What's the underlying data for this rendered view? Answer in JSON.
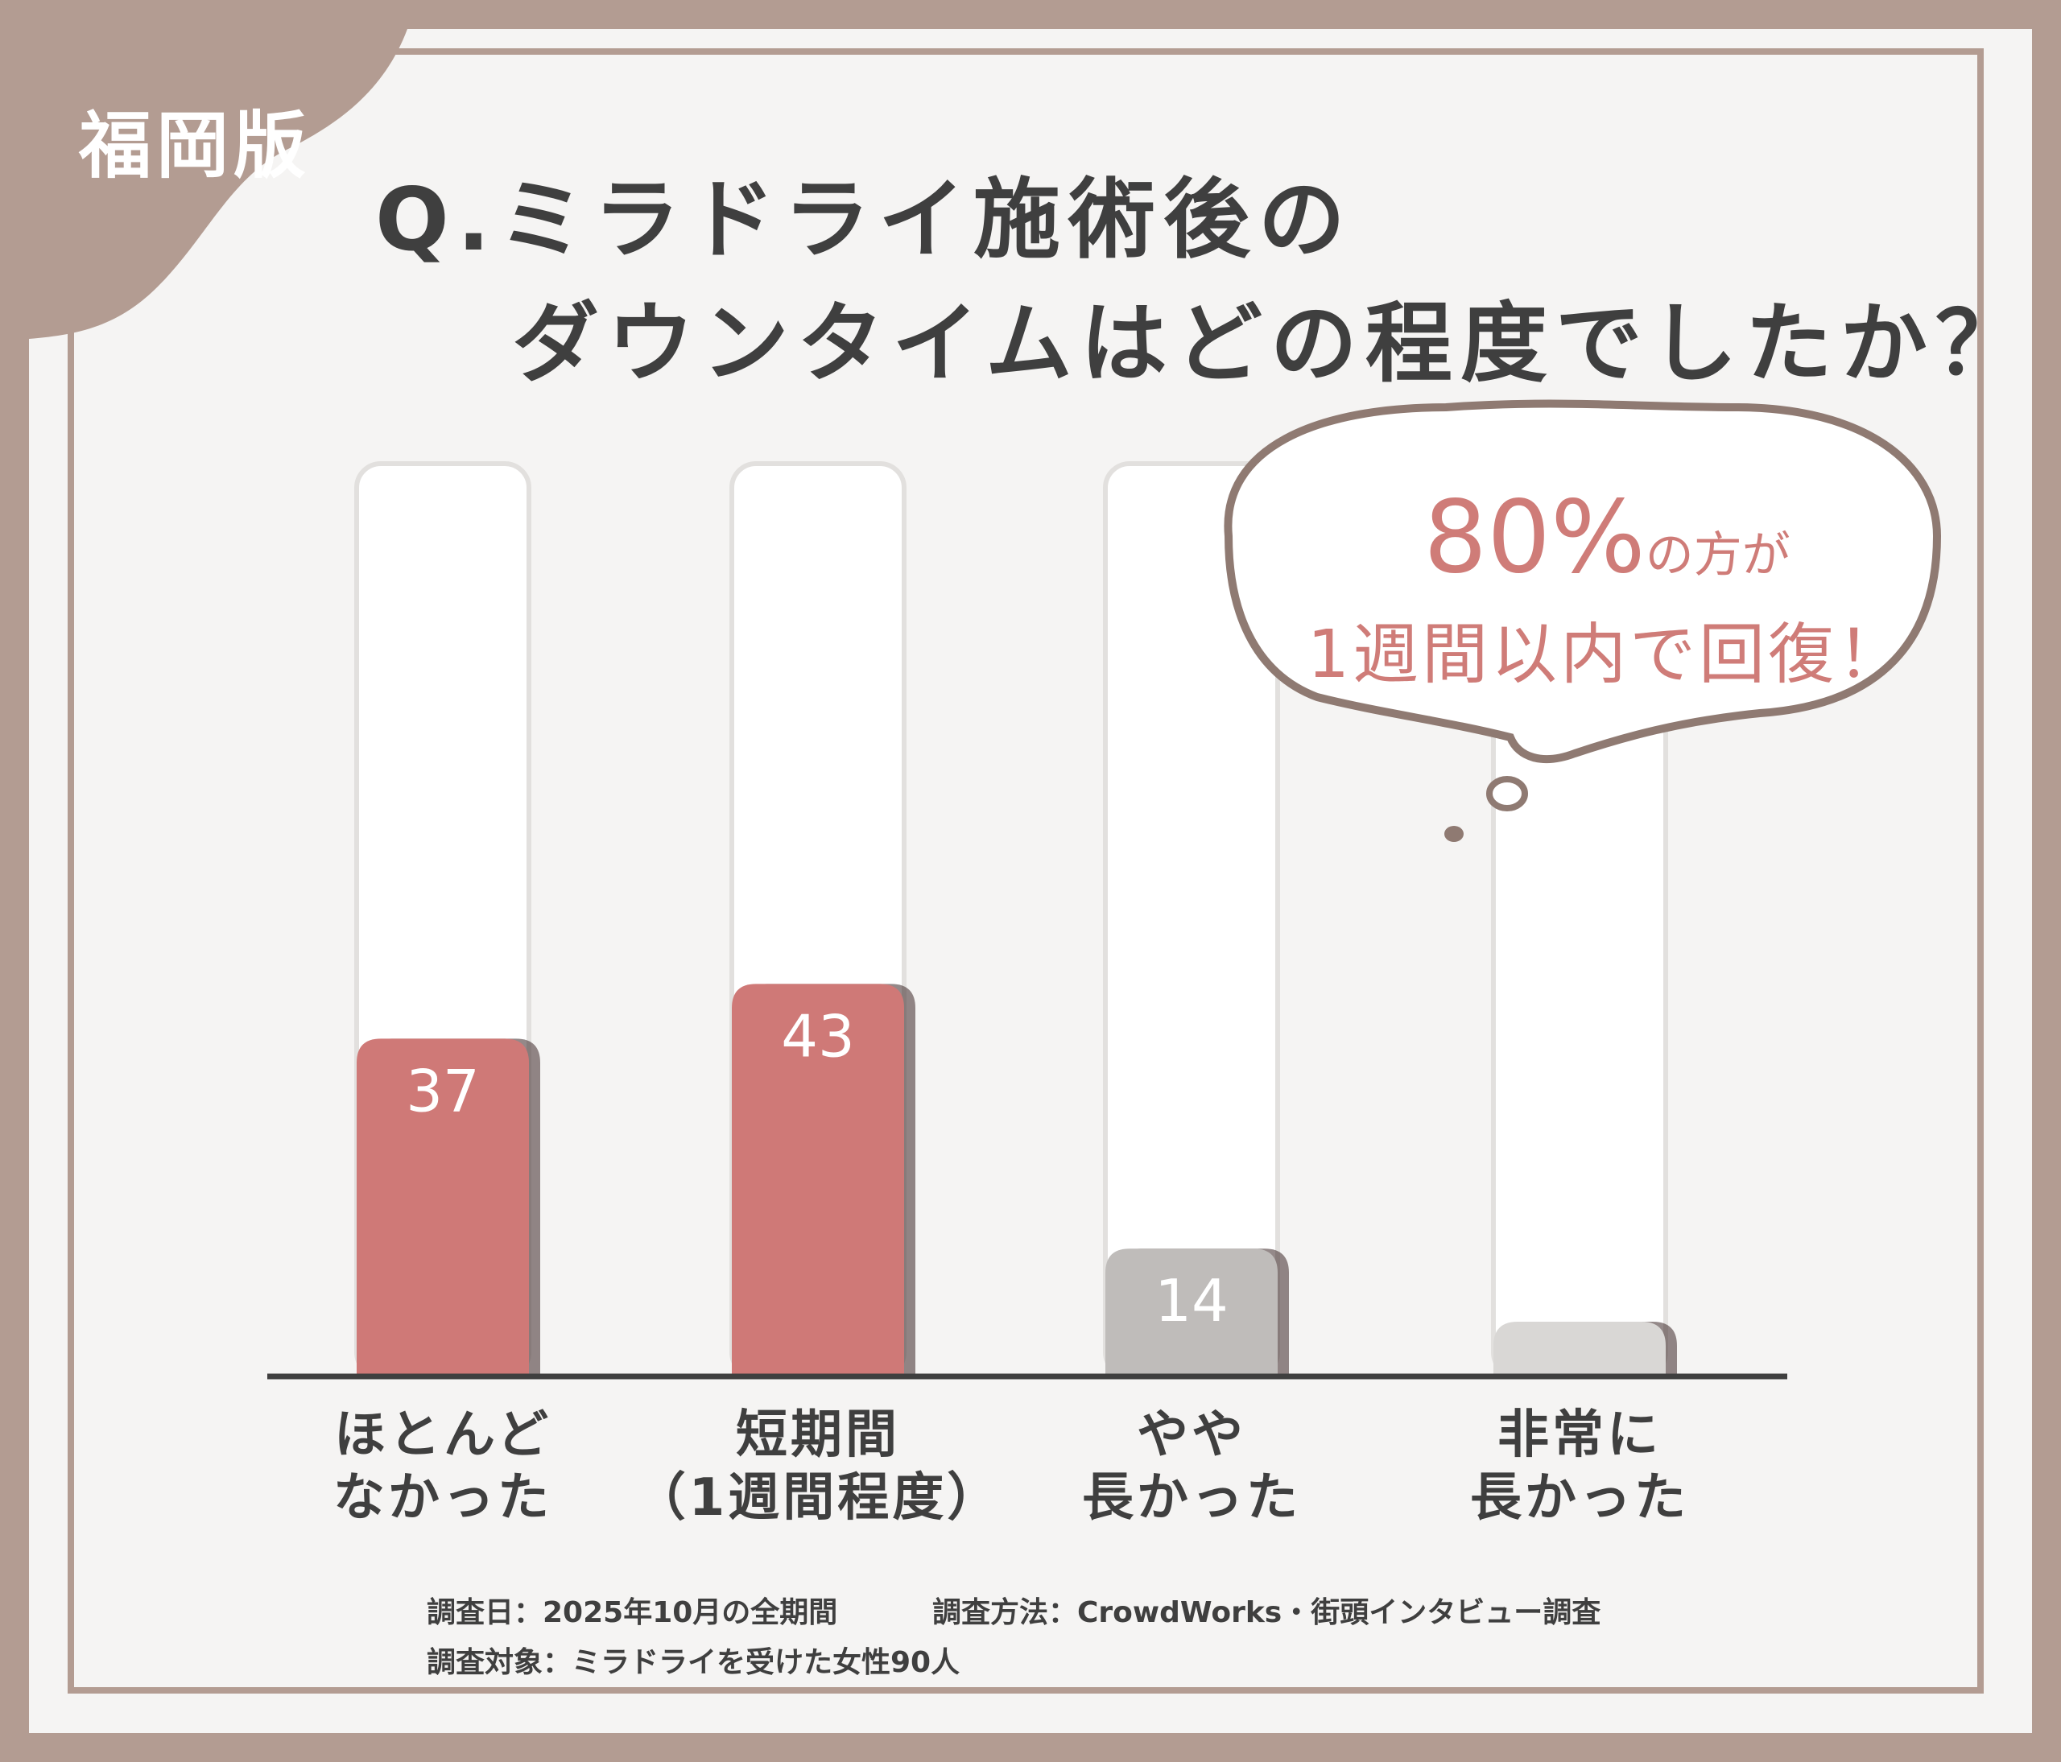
{
  "badge": "福岡版",
  "title": {
    "line1": "Q.ミラドライ施術後の",
    "line2": "ダウンタイムはどの程度でしたか？"
  },
  "callout": {
    "percent": "80%",
    "line1_suffix": "の方が",
    "line2": "1週間以内で回復！"
  },
  "colors": {
    "highlight": "#cf7977",
    "muted": "#bfbcba",
    "light": "#d9d7d5",
    "frame": "#b39c92",
    "text": "#3f3f3f"
  },
  "chart_data": {
    "type": "bar",
    "categories": [
      "ほとんどなかった",
      "短期間（1週間程度）",
      "やや長かった",
      "非常に長かった"
    ],
    "category_lines": [
      [
        "ほとんど",
        "なかった"
      ],
      [
        "短期間",
        "（1週間程度）"
      ],
      [
        "やや",
        "長かった"
      ],
      [
        "非常に",
        "長かった"
      ]
    ],
    "values": [
      37,
      43,
      14,
      6
    ],
    "bar_colors": [
      "#cf7977",
      "#cf7977",
      "#bfbcba",
      "#d9d7d5"
    ],
    "value_label_colors": [
      "#ffffff",
      "#ffffff",
      "#ffffff",
      "#bdbab8"
    ],
    "ylim": [
      0,
      100
    ],
    "grid": false,
    "title": "",
    "xlabel": "",
    "ylabel": ""
  },
  "footnotes": {
    "date": "調査日：2025年10月の全期間",
    "method": "調査方法：CrowdWorks・街頭インタビュー調査",
    "target": "調査対象：ミラドライを受けた女性90人"
  }
}
